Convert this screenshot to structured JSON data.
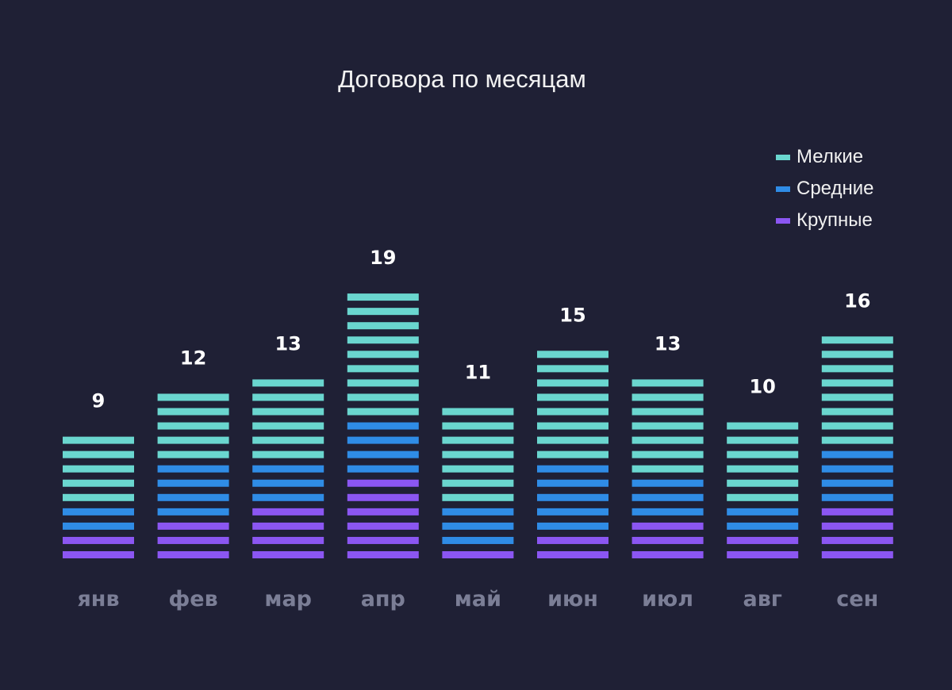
{
  "chart_data": {
    "type": "bar",
    "stacked": true,
    "title": "Договора по месяцам",
    "categories": [
      "янв",
      "фев",
      "мар",
      "апр",
      "май",
      "июн",
      "июл",
      "авг",
      "сен"
    ],
    "series": [
      {
        "name": "Крупные",
        "color": "#8b56f2",
        "values": [
          2,
          3,
          4,
          6,
          1,
          2,
          3,
          2,
          4
        ]
      },
      {
        "name": "Средние",
        "color": "#2f8ce6",
        "values": [
          2,
          4,
          3,
          4,
          3,
          5,
          3,
          2,
          4
        ]
      },
      {
        "name": "Мелкие",
        "color": "#6ad6cf",
        "values": [
          5,
          5,
          6,
          9,
          7,
          8,
          7,
          6,
          8
        ]
      }
    ],
    "totals": [
      9,
      12,
      13,
      19,
      11,
      15,
      13,
      10,
      16
    ],
    "legend_order": [
      "Мелкие",
      "Средние",
      "Крупные"
    ],
    "legend_position": "top-right",
    "grid": false,
    "ylim": [
      0,
      19
    ]
  }
}
